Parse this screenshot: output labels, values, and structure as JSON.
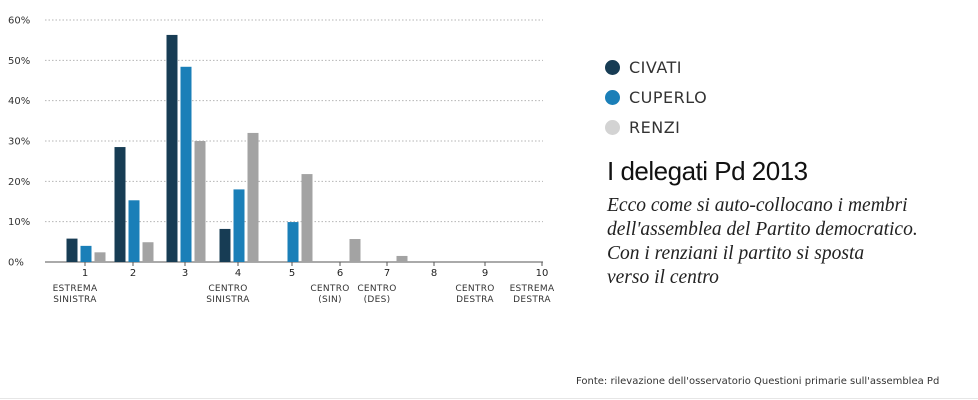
{
  "colors": {
    "civati": "#173c54",
    "cuperlo": "#1a7fb8",
    "renzi": "#a3a3a3"
  },
  "legend": [
    {
      "label": "CIVATI",
      "color": "#173c54"
    },
    {
      "label": "CUPERLO",
      "color": "#1a7fb8"
    },
    {
      "label": "RENZI",
      "color": "#d3d3d3"
    }
  ],
  "title": "I delegati Pd 2013",
  "subtitle_lines": [
    "Ecco come si auto-collocano i membri",
    "dell'assemblea del Partito democratico.",
    "Con i renziani il partito si sposta",
    "verso il centro"
  ],
  "source": "Fonte: rilevazione dell'osservatorio Questioni primarie sull'assemblea Pd",
  "chart_data": {
    "type": "bar",
    "categories": [
      "1",
      "2",
      "3",
      "4",
      "5",
      "6",
      "7",
      "8",
      "9",
      "10"
    ],
    "category_sublabels": [
      [
        "ESTREMA",
        "SINISTRA"
      ],
      [],
      [],
      [
        "CENTRO",
        "SINISTRA"
      ],
      [],
      [
        "CENTRO",
        "(SIN)"
      ],
      [
        "CENTRO",
        "(DES)"
      ],
      [],
      [
        "CENTRO",
        "DESTRA"
      ],
      [
        "ESTREMA",
        "DESTRA"
      ]
    ],
    "series": [
      {
        "name": "CIVATI",
        "values": [
          5.8,
          28.5,
          56.3,
          8.2,
          0,
          0,
          0,
          0,
          0,
          0
        ]
      },
      {
        "name": "CUPERLO",
        "values": [
          4.0,
          15.3,
          48.4,
          18.0,
          9.9,
          0,
          0,
          0,
          0,
          0
        ]
      },
      {
        "name": "RENZI",
        "values": [
          2.4,
          4.9,
          30.0,
          32.0,
          21.8,
          5.7,
          1.5,
          0,
          0,
          0
        ]
      }
    ],
    "yticks": [
      "0%",
      "10%",
      "20%",
      "30%",
      "40%",
      "50%",
      "60%"
    ],
    "ylim": [
      0,
      60
    ],
    "grid": true,
    "legend_position": "right"
  }
}
